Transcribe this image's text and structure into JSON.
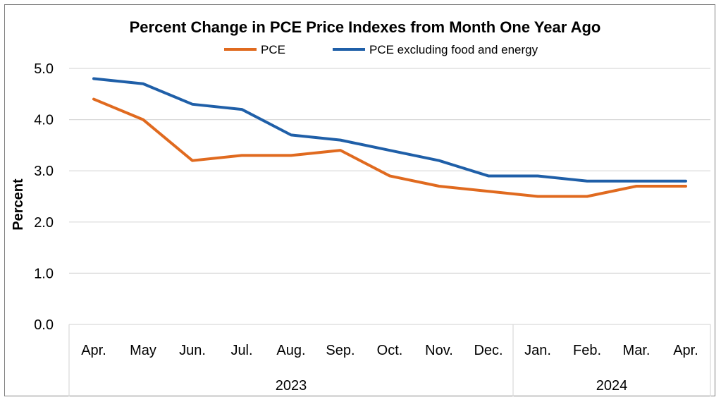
{
  "chart_data": {
    "type": "line",
    "title": "Percent Change in PCE Price Indexes from Month One Year Ago",
    "ylabel": "Percent",
    "xlabel": "",
    "ylim": [
      0,
      5
    ],
    "yticks": [
      "0.0",
      "1.0",
      "2.0",
      "3.0",
      "4.0",
      "5.0"
    ],
    "grid": true,
    "legend_position": "top",
    "categories": [
      "Apr.",
      "May",
      "Jun.",
      "Jul.",
      "Aug.",
      "Sep.",
      "Oct.",
      "Nov.",
      "Dec.",
      "Jan.",
      "Feb.",
      "Mar.",
      "Apr."
    ],
    "year_groups": [
      {
        "label": "2023",
        "start": 0,
        "end": 8
      },
      {
        "label": "2024",
        "start": 9,
        "end": 12
      }
    ],
    "series": [
      {
        "name": "PCE",
        "color": "#e06a1f",
        "values": [
          4.4,
          4.0,
          3.2,
          3.3,
          3.3,
          3.4,
          2.9,
          2.7,
          2.6,
          2.5,
          2.5,
          2.7,
          2.7
        ]
      },
      {
        "name": "PCE excluding food and energy",
        "color": "#1f5fa8",
        "values": [
          4.8,
          4.7,
          4.3,
          4.2,
          3.7,
          3.6,
          3.4,
          3.2,
          2.9,
          2.9,
          2.8,
          2.8,
          2.8
        ]
      }
    ]
  }
}
